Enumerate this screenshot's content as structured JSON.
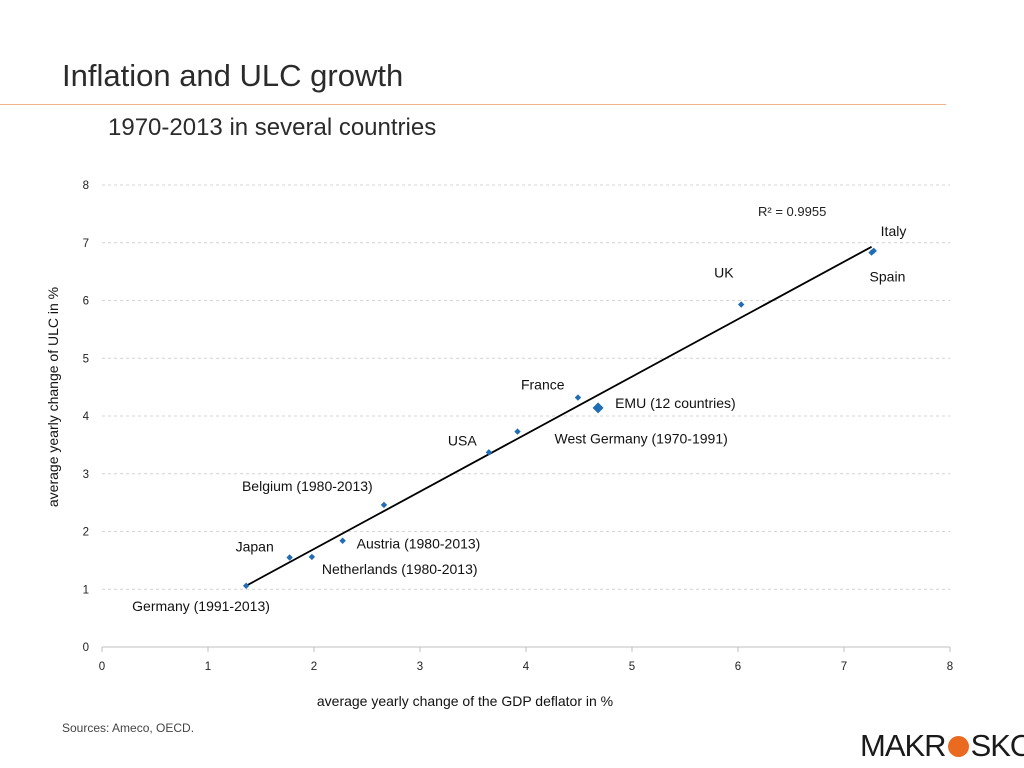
{
  "page": {
    "title": "Inflation and ULC growth",
    "subtitle": "1970-2013 in several countries",
    "sources": "Sources: Ameco, OECD.",
    "logo_left": "MAKR",
    "logo_right": "SKOP"
  },
  "colors": {
    "point": "#1f6db4",
    "trendline": "#000000",
    "gridline": "#d4d4d4",
    "rule": "#f0b48c",
    "logo_accent": "#ea6a1f"
  },
  "chart_data": {
    "type": "scatter",
    "xlabel": "average yearly change of the GDP deflator in %",
    "ylabel": "average yearly change of ULC in %",
    "xlim": [
      0,
      8
    ],
    "ylim": [
      0,
      8
    ],
    "x_ticks": [
      0,
      1,
      2,
      3,
      4,
      5,
      6,
      7,
      8
    ],
    "y_ticks": [
      0,
      1,
      2,
      3,
      4,
      5,
      6,
      7,
      8
    ],
    "grid": "horizontal dashed",
    "points": [
      {
        "label": "Germany (1991-2013)",
        "x": 1.36,
        "y": 1.06
      },
      {
        "label": "Japan",
        "x": 1.77,
        "y": 1.55
      },
      {
        "label": "Netherlands (1980-2013)",
        "x": 1.98,
        "y": 1.56
      },
      {
        "label": "Austria (1980-2013)",
        "x": 2.27,
        "y": 1.84
      },
      {
        "label": "Belgium (1980-2013)",
        "x": 2.66,
        "y": 2.46
      },
      {
        "label": "USA",
        "x": 3.65,
        "y": 3.37
      },
      {
        "label": "West Germany (1970-1991)",
        "x": 3.92,
        "y": 3.73
      },
      {
        "label": "France",
        "x": 4.49,
        "y": 4.32
      },
      {
        "label": "EMU (12 countries)",
        "x": 4.68,
        "y": 4.14,
        "highlight": true
      },
      {
        "label": "UK",
        "x": 6.03,
        "y": 5.93
      },
      {
        "label": "Spain",
        "x": 7.26,
        "y": 6.83
      },
      {
        "label": "Italy",
        "x": 7.28,
        "y": 6.86
      }
    ],
    "trendline": {
      "x": [
        1.36,
        7.26
      ],
      "y": [
        1.06,
        6.93
      ],
      "r2_label": "R² = 0.9955"
    }
  }
}
